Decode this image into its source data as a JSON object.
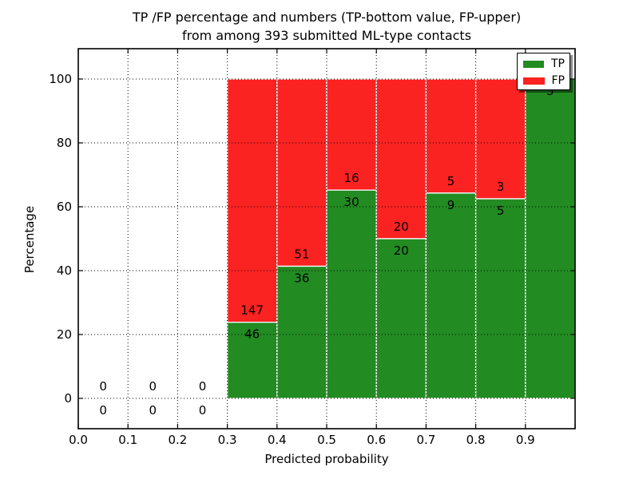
{
  "title": {
    "line1": "TP /FP percentage and numbers (TP-bottom value, FP-upper)",
    "line2": "from among 393 submitted ML-type contacts"
  },
  "axes": {
    "xlabel": "Predicted probability",
    "ylabel": "Percentage",
    "xticks": [
      "0.0",
      "0.1",
      "0.2",
      "0.3",
      "0.4",
      "0.5",
      "0.6",
      "0.7",
      "0.8",
      "0.9"
    ],
    "yticks": [
      "0",
      "20",
      "40",
      "60",
      "80",
      "100"
    ]
  },
  "legend": {
    "items": [
      {
        "label": "TP",
        "color": "#228B22"
      },
      {
        "label": "FP",
        "color": "#FB2222"
      }
    ]
  },
  "chart_data": {
    "type": "bar",
    "stacked": true,
    "normalized_to_percent": 100,
    "title": "TP /FP percentage and numbers (TP-bottom value, FP-upper) from among 393 submitted ML-type contacts",
    "xlabel": "Predicted probability",
    "ylabel": "Percentage",
    "total_contacts": 393,
    "xlim": [
      0.0,
      1.0
    ],
    "yticks": [
      0,
      20,
      40,
      60,
      80,
      100
    ],
    "grid": true,
    "grid_style": "dotted",
    "legend_position": "upper right",
    "bin_width": 0.1,
    "categories": [
      "0.0-0.1",
      "0.1-0.2",
      "0.2-0.3",
      "0.3-0.4",
      "0.4-0.5",
      "0.5-0.6",
      "0.6-0.7",
      "0.7-0.8",
      "0.8-0.9",
      "0.9-1.0"
    ],
    "bin_edges": [
      0.0,
      0.1,
      0.2,
      0.3,
      0.4,
      0.5,
      0.6,
      0.7,
      0.8,
      0.9,
      1.0
    ],
    "series": [
      {
        "name": "TP",
        "color": "#228B22",
        "position": "bottom",
        "counts": [
          0,
          0,
          0,
          46,
          36,
          30,
          20,
          9,
          5,
          5
        ]
      },
      {
        "name": "FP",
        "color": "#FB2222",
        "position": "top",
        "counts": [
          0,
          0,
          0,
          147,
          51,
          16,
          20,
          5,
          3,
          0
        ]
      }
    ],
    "tp_percent_of_bin": [
      0,
      0,
      0,
      23.8,
      41.4,
      65.2,
      50.0,
      64.3,
      62.5,
      100.0
    ],
    "note_labels": "TP count printed below segment boundary, FP count printed above it"
  }
}
